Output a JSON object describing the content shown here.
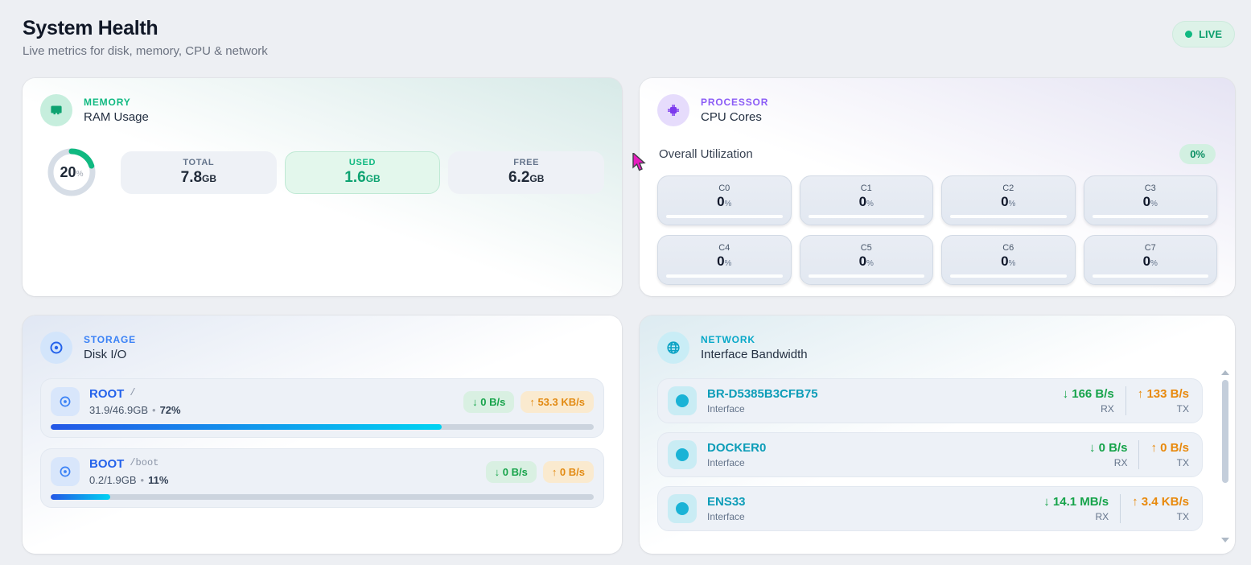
{
  "header": {
    "title": "System Health",
    "subtitle": "Live metrics for disk, memory, CPU & network",
    "live_label": "LIVE"
  },
  "colors": {
    "memory_green": "#10b981",
    "processor_purple": "#8b5cf6",
    "storage_blue": "#2563eb",
    "network_cyan": "#0d9db8",
    "rx_green": "#16a34a",
    "tx_orange": "#e8890c"
  },
  "memory_card": {
    "category": "MEMORY",
    "title": "RAM Usage",
    "gauge": {
      "value": "20",
      "unit": "%",
      "percent": 20
    },
    "stats": [
      {
        "label": "TOTAL",
        "value": "7.8",
        "unit": "GB",
        "highlight": false
      },
      {
        "label": "USED",
        "value": "1.6",
        "unit": "GB",
        "highlight": true
      },
      {
        "label": "FREE",
        "value": "6.2",
        "unit": "GB",
        "highlight": false
      }
    ]
  },
  "processor_card": {
    "category": "PROCESSOR",
    "title": "CPU Cores",
    "overall_label": "Overall Utilization",
    "overall_value": "0%",
    "core_unit": "%",
    "cores": [
      {
        "name": "C0",
        "value": "0",
        "percent": 0
      },
      {
        "name": "C1",
        "value": "0",
        "percent": 0
      },
      {
        "name": "C2",
        "value": "0",
        "percent": 0
      },
      {
        "name": "C3",
        "value": "0",
        "percent": 0
      },
      {
        "name": "C4",
        "value": "0",
        "percent": 0
      },
      {
        "name": "C5",
        "value": "0",
        "percent": 0
      },
      {
        "name": "C6",
        "value": "0",
        "percent": 0
      },
      {
        "name": "C7",
        "value": "0",
        "percent": 0
      }
    ]
  },
  "storage_card": {
    "category": "STORAGE",
    "title": "Disk I/O",
    "disks": [
      {
        "name": "ROOT",
        "mount": "/",
        "usage": "31.9/46.9GB",
        "separator": "•",
        "percent_label": "72%",
        "percent": 72,
        "read": "↓ 0 B/s",
        "write": "↑ 53.3 KB/s"
      },
      {
        "name": "BOOT",
        "mount": "/boot",
        "usage": "0.2/1.9GB",
        "separator": "•",
        "percent_label": "11%",
        "percent": 11,
        "read": "↓ 0 B/s",
        "write": "↑ 0 B/s"
      }
    ]
  },
  "network_card": {
    "category": "NETWORK",
    "title": "Interface Bandwidth",
    "interfaces": [
      {
        "name": "BR-D5385B3CFB75",
        "sub": "Interface",
        "rx": "↓ 166 B/s",
        "rx_label": "RX",
        "tx": "↑ 133 B/s",
        "tx_label": "TX"
      },
      {
        "name": "DOCKER0",
        "sub": "Interface",
        "rx": "↓ 0 B/s",
        "rx_label": "RX",
        "tx": "↑ 0 B/s",
        "tx_label": "TX"
      },
      {
        "name": "ENS33",
        "sub": "Interface",
        "rx": "↓ 14.1 MB/s",
        "rx_label": "RX",
        "tx": "↑ 3.4 KB/s",
        "tx_label": "TX"
      }
    ]
  }
}
